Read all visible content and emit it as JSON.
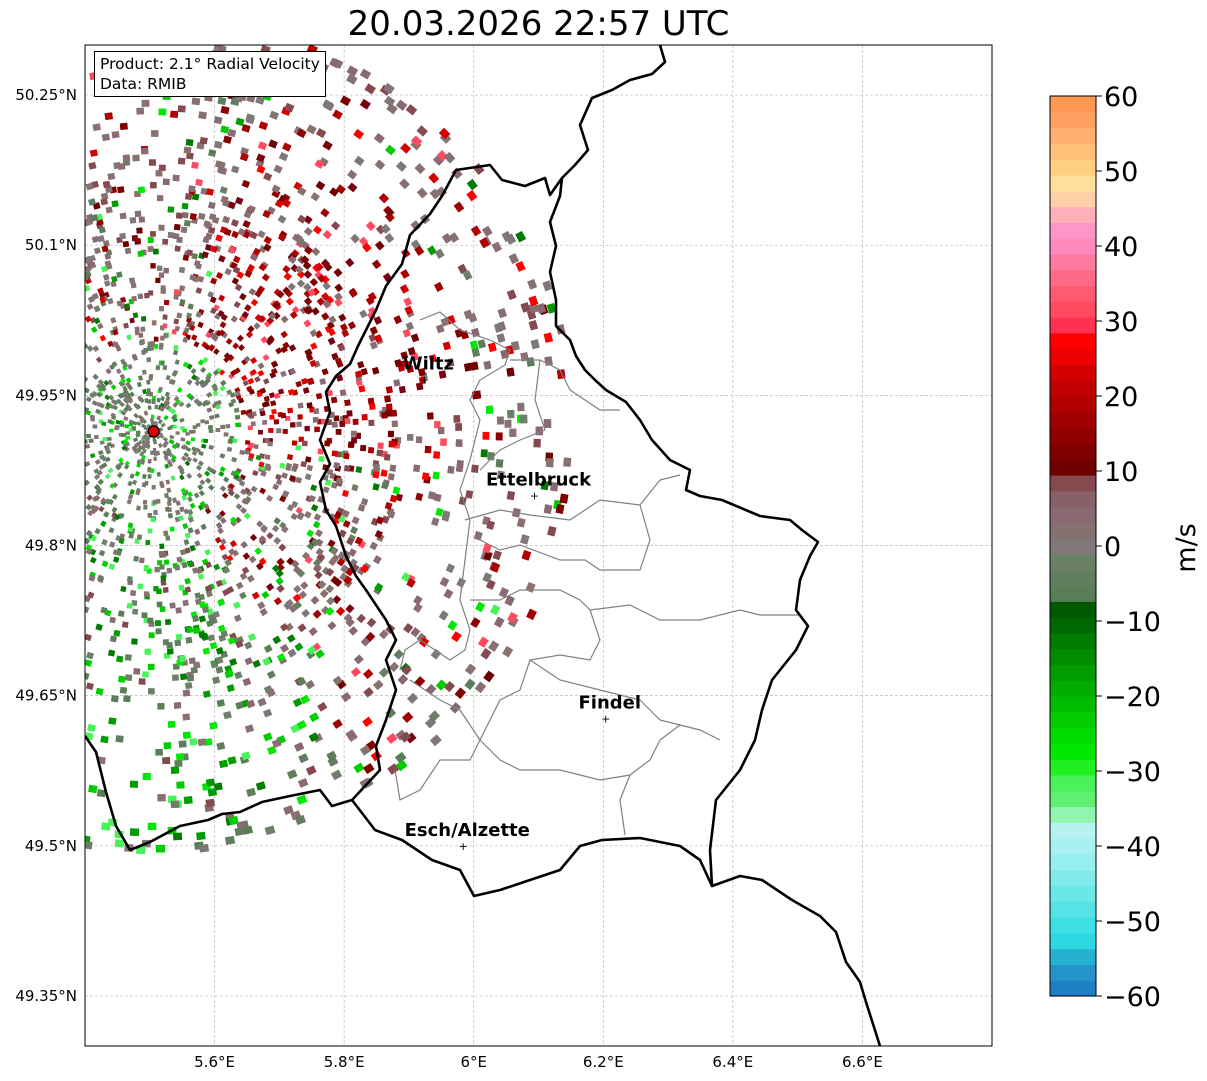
{
  "title": "20.03.2026 22:57 UTC",
  "info": {
    "product": "Product: 2.1° Radial Velocity",
    "source": "Data: RMIB"
  },
  "map": {
    "lon_range": [
      5.4,
      6.8
    ],
    "lat_range": [
      49.3,
      50.3
    ],
    "lon_ticks": [
      {
        "v": 5.6,
        "label": "5.6°E"
      },
      {
        "v": 5.8,
        "label": "5.8°E"
      },
      {
        "v": 6.0,
        "label": "6°E"
      },
      {
        "v": 6.2,
        "label": "6.2°E"
      },
      {
        "v": 6.4,
        "label": "6.4°E"
      },
      {
        "v": 6.6,
        "label": "6.6°E"
      }
    ],
    "lat_ticks": [
      {
        "v": 50.25,
        "label": "50.25°N"
      },
      {
        "v": 50.1,
        "label": "50.1°N"
      },
      {
        "v": 49.95,
        "label": "49.95°N"
      },
      {
        "v": 49.8,
        "label": "49.8°N"
      },
      {
        "v": 49.65,
        "label": "49.65°N"
      },
      {
        "v": 49.5,
        "label": "49.5°N"
      },
      {
        "v": 49.35,
        "label": "49.35°N"
      }
    ],
    "radar_site": {
      "lon": 5.506,
      "lat": 49.914
    },
    "cities": [
      {
        "name": "Wiltz",
        "lon": 5.93,
        "lat": 49.966
      },
      {
        "name": "Ettelbruck",
        "lon": 6.1,
        "lat": 49.85
      },
      {
        "name": "Findel",
        "lon": 6.21,
        "lat": 49.627
      },
      {
        "name": "Esch/Alzette",
        "lon": 5.99,
        "lat": 49.5
      }
    ]
  },
  "colorbar": {
    "label": "m/s",
    "range": [
      -60,
      60
    ],
    "ticks": [
      {
        "v": 60,
        "label": "60"
      },
      {
        "v": 50,
        "label": "50"
      },
      {
        "v": 40,
        "label": "40"
      },
      {
        "v": 30,
        "label": "30"
      },
      {
        "v": 20,
        "label": "20"
      },
      {
        "v": 10,
        "label": "10"
      },
      {
        "v": 0,
        "label": "0"
      },
      {
        "v": -10,
        "label": "−10"
      },
      {
        "v": -20,
        "label": "−20"
      },
      {
        "v": -30,
        "label": "−30"
      },
      {
        "v": -40,
        "label": "−40"
      },
      {
        "v": -50,
        "label": "−50"
      },
      {
        "v": -60,
        "label": "−60"
      }
    ],
    "colors": [
      "#1f7fc4",
      "#2493c9",
      "#26b1d1",
      "#2ed8e0",
      "#3de0e3",
      "#55e3e5",
      "#6ae7e7",
      "#80eaea",
      "#96eeee",
      "#a8f0ef",
      "#b8f2f0",
      "#8ff5b0",
      "#60f070",
      "#4af25a",
      "#20f020",
      "#00e800",
      "#00dc00",
      "#00cc00",
      "#00bc00",
      "#00ac00",
      "#009c00",
      "#008c00",
      "#007c00",
      "#006800",
      "#005800",
      "#5a7e58",
      "#627e60",
      "#6c8066",
      "#807878",
      "#867070",
      "#8a6a72",
      "#886068",
      "#844a50",
      "#700000",
      "#800000",
      "#900000",
      "#a00000",
      "#b00000",
      "#c00000",
      "#d40000",
      "#ee0000",
      "#ff0000",
      "#ff3050",
      "#ff4a60",
      "#ff5a70",
      "#ff6a86",
      "#ff7aa0",
      "#ff8abe",
      "#ff96c8",
      "#ffb0b8",
      "#ffd0a8",
      "#ffe09a",
      "#ffd080",
      "#ffc07a",
      "#ffb070",
      "#ffa060",
      "#ff9850"
    ]
  }
}
